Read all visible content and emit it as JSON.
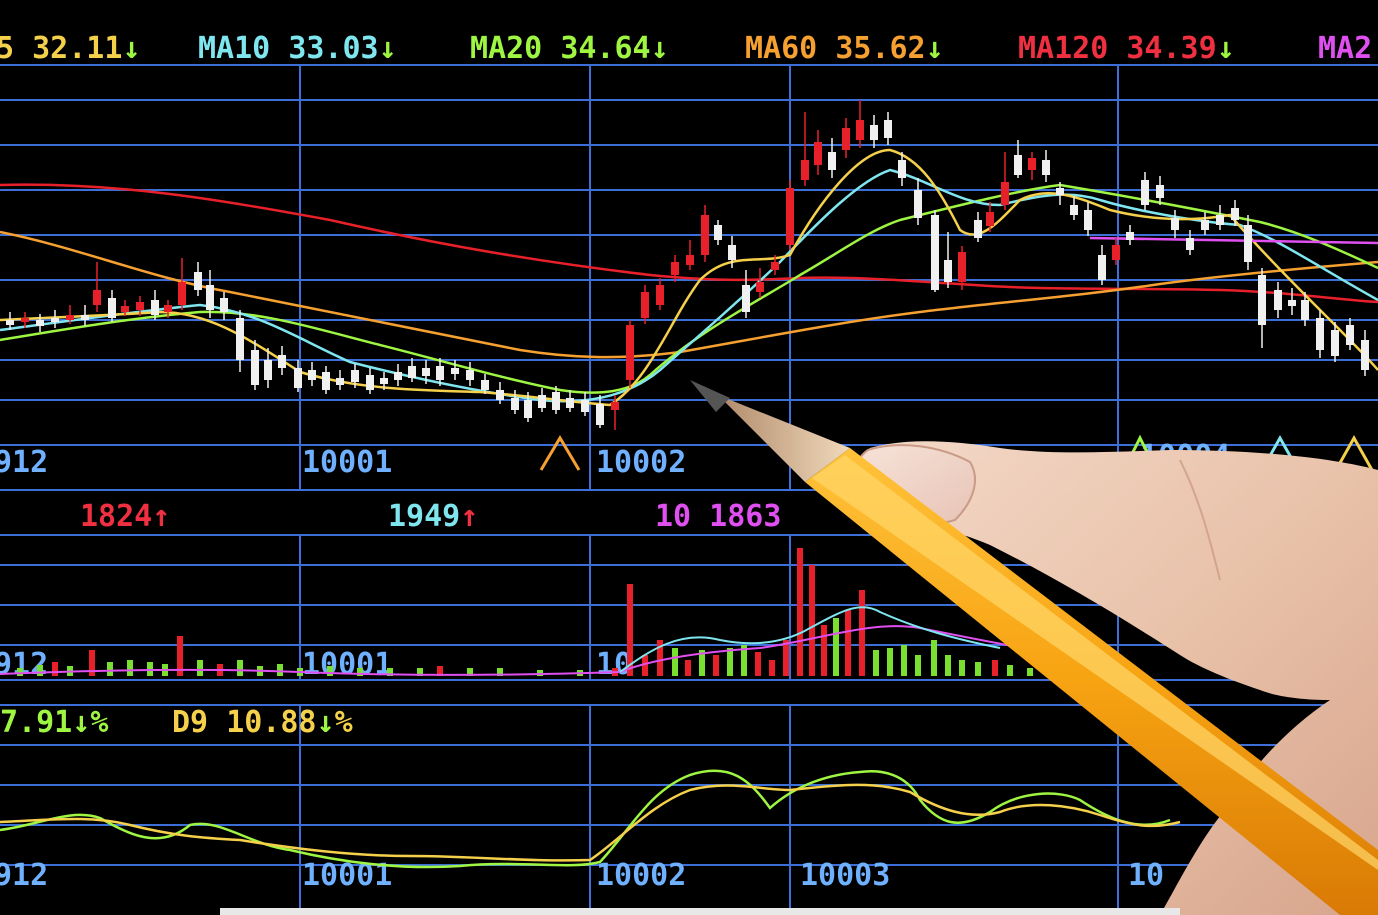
{
  "ma_header": {
    "ma5": {
      "label": "5",
      "value": "32.11",
      "arrow": "↓",
      "color": "#f5d04a"
    },
    "ma10": {
      "label": "MA10",
      "value": "33.03",
      "arrow": "↓",
      "color": "#7fe6f0"
    },
    "ma20": {
      "label": "MA20",
      "value": "34.64",
      "arrow": "↓",
      "color": "#9ef542"
    },
    "ma60": {
      "label": "MA60",
      "value": "35.62",
      "arrow": "↓",
      "color": "#f5a030"
    },
    "ma120": {
      "label": "MA120",
      "value": "34.39",
      "arrow": "↓",
      "color": "#f03040"
    },
    "ma_last": {
      "label": "MA2",
      "color": "#e050f0"
    }
  },
  "price_axis_labels": [
    "912",
    "10001",
    "10002",
    "10004"
  ],
  "volume_header": {
    "v1": {
      "text": "1824",
      "arrow": "↑",
      "color": "#f03040"
    },
    "v2": {
      "text": "1949",
      "arrow": "↑",
      "color": "#7fe6f0"
    },
    "v3": {
      "text": "10 1863",
      "color": "#e050f0"
    }
  },
  "volume_axis_labels": [
    "912",
    "10001",
    "10"
  ],
  "kd_header": {
    "k": {
      "text": "7.91",
      "arrow": "↓",
      "unit": "%",
      "color": "#9ef542"
    },
    "d": {
      "label": "D9",
      "text": "10.88",
      "arrow": "↓",
      "unit": "%",
      "color": "#f5d04a"
    }
  },
  "kd_axis_labels": [
    "912",
    "10001",
    "10002",
    "10003",
    "10"
  ],
  "colors": {
    "grid": "#3d6fd8",
    "up_candle": "#e8202a",
    "down_candle": "#f0f0f0",
    "volume_up": "#e8202a",
    "volume_down": "#7ae030",
    "axis_text": "#6fb0ff"
  },
  "icons": [
    "pencil",
    "hand",
    "triangle-marker"
  ]
}
